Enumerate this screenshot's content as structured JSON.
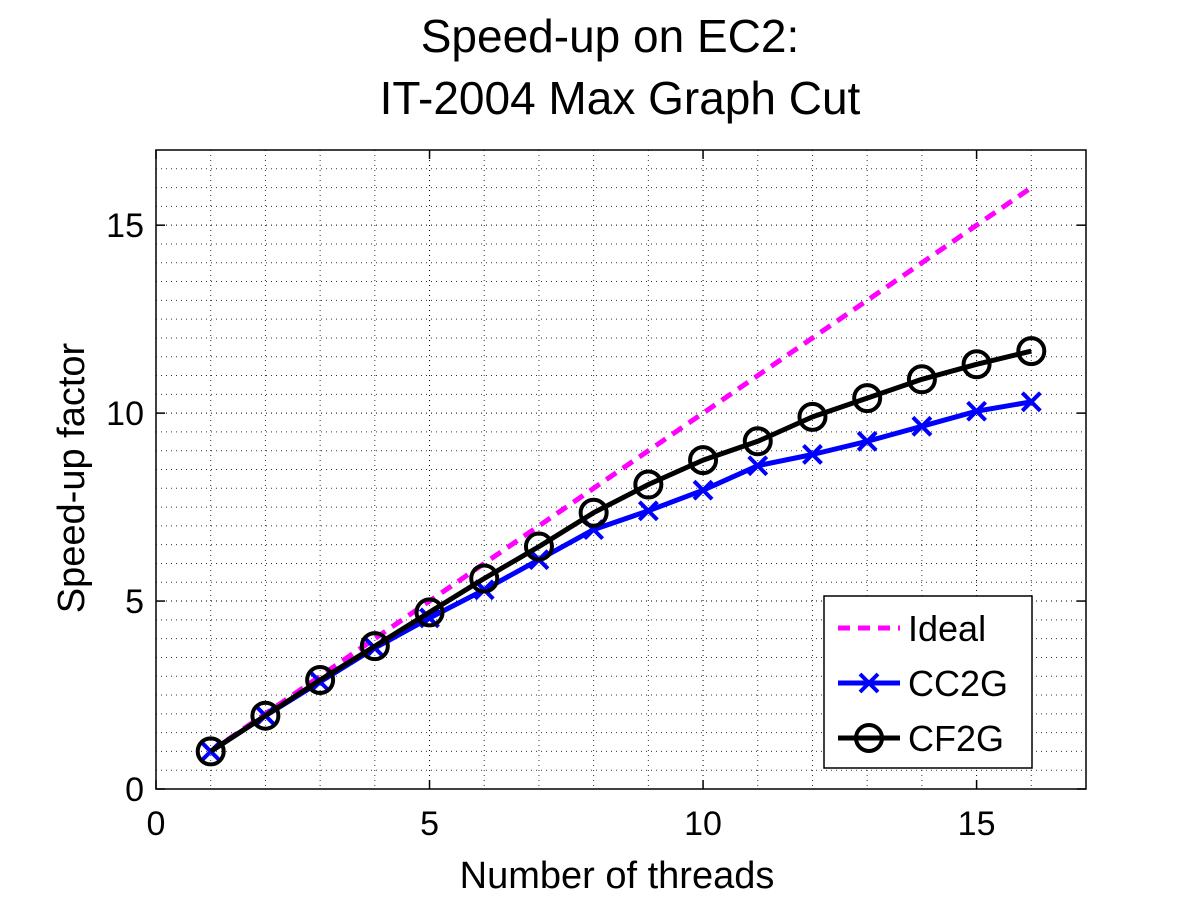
{
  "chart_data": {
    "type": "line",
    "title": [
      "Speed-up on EC2:",
      "IT-2004 Max Graph Cut"
    ],
    "xlabel": "Number of threads",
    "ylabel": "Speed-up factor",
    "xlim": [
      0,
      17
    ],
    "ylim": [
      0,
      17
    ],
    "xticks": [
      0,
      5,
      10,
      15
    ],
    "yticks": [
      0,
      5,
      10,
      15
    ],
    "grid": true,
    "minor_grid": true,
    "legend_position": "bottom-right",
    "series": [
      {
        "name": "Ideal",
        "color": "#ff00ff",
        "style": "dashed",
        "marker": "none",
        "x": [
          1,
          2,
          3,
          4,
          5,
          6,
          7,
          8,
          9,
          10,
          11,
          12,
          13,
          14,
          15,
          16
        ],
        "values": [
          1,
          2,
          3,
          4,
          5,
          6,
          7,
          8,
          9,
          10,
          11,
          12,
          13,
          14,
          15,
          16
        ]
      },
      {
        "name": "CC2G",
        "color": "#0000ff",
        "style": "solid",
        "marker": "x",
        "x": [
          1,
          2,
          3,
          4,
          5,
          6,
          7,
          8,
          9,
          10,
          11,
          12,
          13,
          14,
          15,
          16
        ],
        "values": [
          1.0,
          1.95,
          2.85,
          3.75,
          4.55,
          5.3,
          6.1,
          6.9,
          7.4,
          7.95,
          8.6,
          8.9,
          9.25,
          9.65,
          10.05,
          10.3
        ]
      },
      {
        "name": "CF2G",
        "color": "#000000",
        "style": "solid",
        "marker": "o",
        "x": [
          1,
          2,
          3,
          4,
          5,
          6,
          7,
          8,
          9,
          10,
          11,
          12,
          13,
          14,
          15,
          16
        ],
        "values": [
          1.0,
          1.95,
          2.9,
          3.8,
          4.7,
          5.6,
          6.45,
          7.35,
          8.1,
          8.75,
          9.25,
          9.9,
          10.4,
          10.9,
          11.3,
          11.65
        ]
      }
    ]
  }
}
